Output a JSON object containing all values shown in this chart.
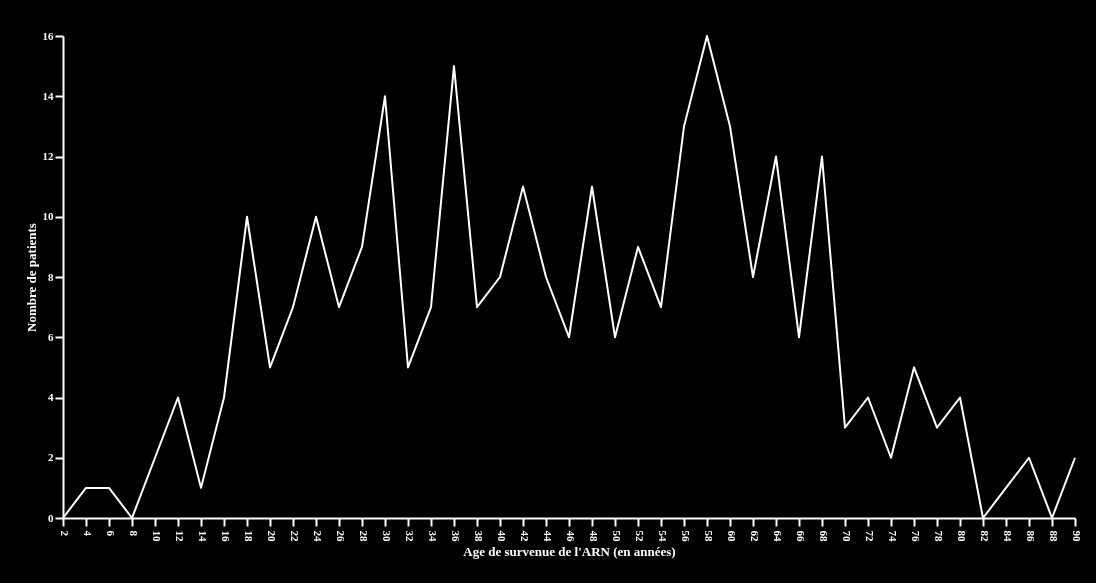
{
  "chart_data": {
    "type": "line",
    "xlabel": "Age de survenue de l'ARN (en années)",
    "ylabel": "Nombre de patients",
    "categories": [
      "2",
      "4",
      "6",
      "8",
      "10",
      "12",
      "14",
      "16",
      "18",
      "20",
      "22",
      "24",
      "26",
      "28",
      "30",
      "32",
      "34",
      "36",
      "38",
      "40",
      "42",
      "44",
      "46",
      "48",
      "50",
      "52",
      "54",
      "56",
      "58",
      "60",
      "62",
      "64",
      "66",
      "68",
      "70",
      "72",
      "74",
      "76",
      "78",
      "80",
      "82",
      "84",
      "86",
      "88",
      "90"
    ],
    "series": [
      {
        "color": "#ffffff",
        "values": [
          0,
          1,
          1,
          0,
          2,
          4,
          1,
          4,
          10,
          5,
          7,
          10,
          7,
          9,
          14,
          5,
          7,
          15,
          7,
          8,
          11,
          8,
          6,
          11,
          6,
          9,
          7,
          13,
          16,
          13,
          8,
          12,
          6,
          12,
          3,
          4,
          2,
          5,
          3,
          4,
          0,
          1,
          2,
          0,
          2
        ]
      }
    ],
    "ylim": [
      0,
      16
    ],
    "yticks": [
      0,
      2,
      4,
      6,
      8,
      10,
      12,
      14,
      16
    ],
    "grid": false,
    "marker": "none",
    "line_style": "solid"
  }
}
